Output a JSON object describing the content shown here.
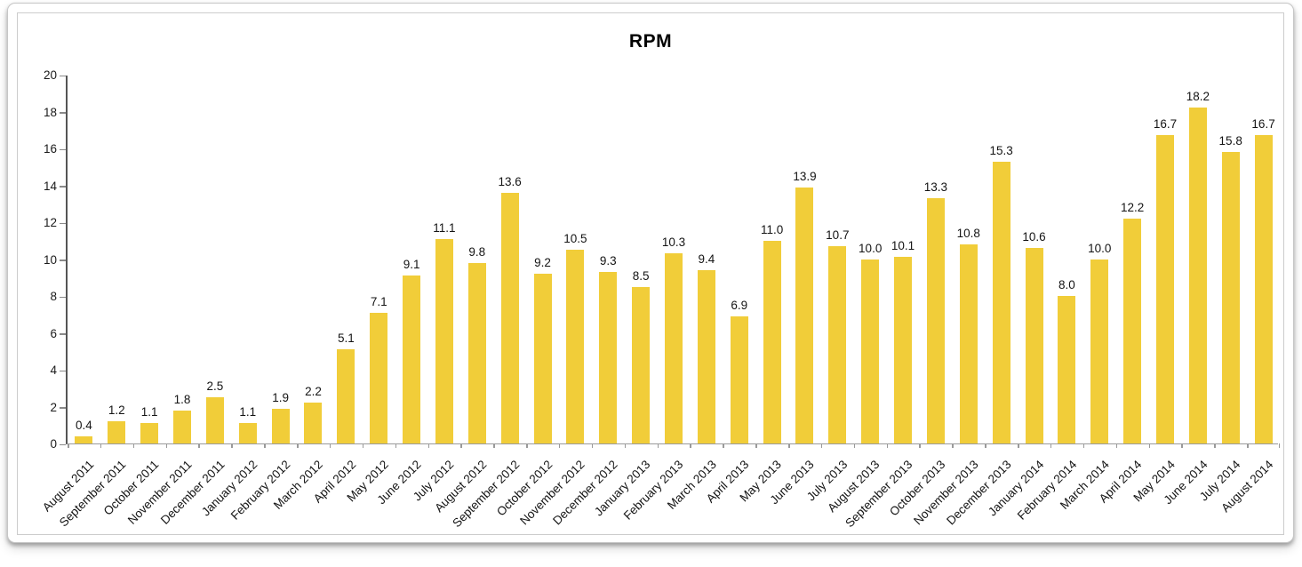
{
  "chart_data": {
    "type": "bar",
    "title": "RPM",
    "categories": [
      "August 2011",
      "September 2011",
      "October 2011",
      "November 2011",
      "December 2011",
      "January 2012",
      "February 2012",
      "March 2012",
      "April 2012",
      "May 2012",
      "June 2012",
      "July 2012",
      "August 2012",
      "September 2012",
      "October 2012",
      "November 2012",
      "December 2012",
      "January 2013",
      "February 2013",
      "March 2013",
      "April 2013",
      "May 2013",
      "June 2013",
      "July 2013",
      "August 2013",
      "September 2013",
      "October 2013",
      "November 2013",
      "December 2013",
      "January 2014",
      "February 2014",
      "March 2014",
      "April 2014",
      "May 2014",
      "June 2014",
      "July 2014",
      "August 2014"
    ],
    "values": [
      0.4,
      1.2,
      1.1,
      1.8,
      2.5,
      1.1,
      1.9,
      2.2,
      5.1,
      7.1,
      9.1,
      11.1,
      9.8,
      13.6,
      9.2,
      10.5,
      9.3,
      8.5,
      10.3,
      9.4,
      6.9,
      11.0,
      13.9,
      10.7,
      10.0,
      10.1,
      13.3,
      10.8,
      15.3,
      10.6,
      8.0,
      10.0,
      12.2,
      16.7,
      18.2,
      15.8,
      16.7
    ],
    "data_labels": "on",
    "data_label_format": "0.0",
    "xlabel": "",
    "ylabel": "",
    "ylim": [
      0,
      20
    ],
    "ytick_step": 2,
    "grid": "off",
    "legend": "none",
    "bar_color": "#F1CD39",
    "label_color": "#141414",
    "axis_color": "#555555"
  }
}
